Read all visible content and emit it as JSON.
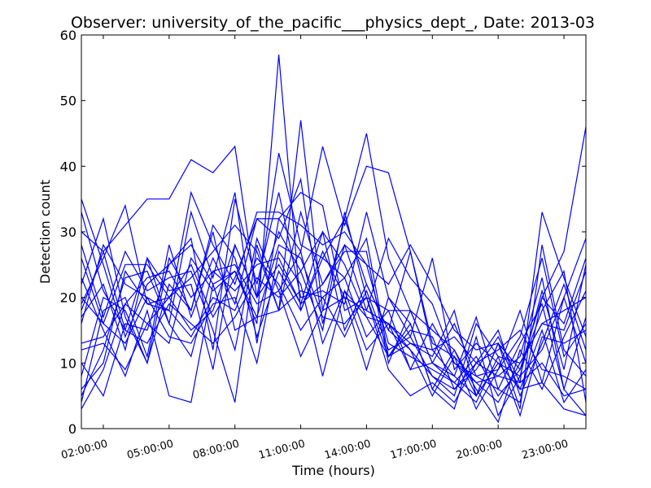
{
  "chart_data": {
    "type": "line",
    "title": "Observer: university_of_the_pacific___physics_dept_, Date: 2013-03",
    "xlabel": "Time (hours)",
    "ylabel": "Detection count",
    "x_unit": "hours",
    "xlim": [
      1,
      24
    ],
    "ylim": [
      0,
      60
    ],
    "yticks": [
      0,
      10,
      20,
      30,
      40,
      50,
      60
    ],
    "xticks": [
      {
        "value": 2,
        "label": "02:00:00"
      },
      {
        "value": 5,
        "label": "05:00:00"
      },
      {
        "value": 8,
        "label": "08:00:00"
      },
      {
        "value": 11,
        "label": "11:00:00"
      },
      {
        "value": 14,
        "label": "14:00:00"
      },
      {
        "value": 17,
        "label": "17:00:00"
      },
      {
        "value": 20,
        "label": "20:00:00"
      },
      {
        "value": 23,
        "label": "23:00:00"
      }
    ],
    "grid": false,
    "legend": "none",
    "color": "#0000ff",
    "x": [
      1,
      2,
      3,
      4,
      5,
      6,
      7,
      8,
      9,
      10,
      11,
      12,
      13,
      14,
      15,
      16,
      17,
      18,
      19,
      20,
      21,
      22,
      23,
      24
    ],
    "series": [
      {
        "values": [
          35,
          25,
          14,
          22,
          25,
          28,
          22,
          24,
          16,
          57,
          18,
          27,
          20,
          18,
          29,
          23,
          19,
          10,
          8,
          6,
          4,
          20,
          16,
          26
        ]
      },
      {
        "values": [
          19,
          26,
          34,
          19,
          20,
          23,
          27,
          31,
          27,
          18,
          47,
          18,
          32,
          45,
          26,
          18,
          15,
          12,
          5,
          13,
          3,
          28,
          12,
          8
        ]
      },
      {
        "values": [
          30,
          27,
          31,
          35,
          35,
          41,
          39,
          43,
          20,
          42,
          28,
          26,
          32,
          22,
          15,
          12,
          8,
          6,
          10,
          8,
          7,
          33,
          23,
          14
        ]
      },
      {
        "values": [
          6,
          10,
          24,
          19,
          18,
          36,
          28,
          22,
          33,
          33,
          31,
          28,
          30,
          25,
          22,
          28,
          22,
          15,
          12,
          13,
          9,
          20,
          27,
          46
        ]
      },
      {
        "values": [
          17,
          22,
          12,
          26,
          16,
          33,
          23,
          36,
          13,
          32,
          27,
          43,
          31,
          40,
          39,
          27,
          13,
          11,
          7,
          4,
          10,
          16,
          18,
          20
        ]
      },
      {
        "values": [
          10,
          5,
          16,
          15,
          25,
          29,
          12,
          35,
          22,
          36,
          20,
          21,
          19,
          33,
          20,
          16,
          6,
          3,
          14,
          2,
          8,
          12,
          20,
          29
        ]
      },
      {
        "values": [
          8,
          20,
          18,
          10,
          26,
          20,
          24,
          21,
          25,
          26,
          19,
          30,
          25,
          17,
          11,
          13,
          11,
          18,
          5,
          13,
          6,
          15,
          4,
          9
        ]
      },
      {
        "values": [
          12,
          13,
          9,
          16,
          20,
          15,
          18,
          28,
          20,
          30,
          24,
          15,
          33,
          20,
          9,
          5,
          7,
          4,
          10,
          12,
          15,
          9,
          8,
          6
        ]
      },
      {
        "values": [
          3,
          9,
          19,
          16,
          13,
          26,
          21,
          24,
          17,
          18,
          33,
          22,
          27,
          27,
          10,
          18,
          10,
          8,
          17,
          6,
          13,
          19,
          6,
          17
        ]
      },
      {
        "values": [
          16,
          28,
          22,
          20,
          14,
          13,
          19,
          20,
          10,
          27,
          22,
          8,
          21,
          12,
          16,
          12,
          5,
          11,
          3,
          9,
          18,
          7,
          20,
          10
        ]
      },
      {
        "values": [
          23,
          15,
          8,
          18,
          5,
          4,
          22,
          12,
          29,
          21,
          11,
          18,
          20,
          9,
          20,
          14,
          8,
          5,
          16,
          11,
          2,
          14,
          13,
          15
        ]
      },
      {
        "values": [
          28,
          17,
          27,
          21,
          23,
          24,
          15,
          4,
          28,
          18,
          21,
          20,
          14,
          21,
          12,
          14,
          26,
          9,
          13,
          10,
          8,
          21,
          9,
          25
        ]
      },
      {
        "values": [
          22,
          32,
          17,
          10,
          22,
          18,
          31,
          26,
          14,
          24,
          18,
          26,
          23,
          29,
          11,
          16,
          6,
          12,
          6,
          1,
          12,
          6,
          14,
          21
        ]
      },
      {
        "values": [
          5,
          12,
          23,
          24,
          16,
          11,
          24,
          25,
          19,
          21,
          27,
          13,
          21,
          17,
          16,
          9,
          16,
          10,
          7,
          8,
          11,
          23,
          6,
          2
        ]
      },
      {
        "values": [
          33,
          21,
          15,
          13,
          19,
          16,
          13,
          17,
          23,
          20,
          24,
          30,
          15,
          22,
          15,
          27,
          12,
          14,
          10,
          15,
          5,
          13,
          22,
          12
        ]
      },
      {
        "values": [
          4,
          18,
          20,
          11,
          28,
          17,
          26,
          19,
          32,
          29,
          38,
          16,
          28,
          25,
          13,
          11,
          9,
          7,
          11,
          5,
          9,
          18,
          24,
          4
        ]
      },
      {
        "values": [
          26,
          16,
          13,
          20,
          18,
          14,
          20,
          18,
          26,
          22,
          15,
          20,
          23,
          14,
          18,
          18,
          10,
          16,
          8,
          9,
          14,
          26,
          11,
          16
        ]
      },
      {
        "values": [
          18,
          27,
          15,
          26,
          21,
          22,
          9,
          28,
          20,
          25,
          19,
          22,
          28,
          18,
          16,
          13,
          12,
          8,
          5,
          10,
          6,
          7,
          3,
          2
        ]
      },
      {
        "values": [
          13,
          14,
          19,
          23,
          24,
          18,
          30,
          15,
          17,
          28,
          26,
          17,
          16,
          20,
          11,
          15,
          14,
          6,
          9,
          14,
          7,
          10,
          5,
          6
        ]
      },
      {
        "values": [
          20,
          16,
          25,
          25,
          20,
          25,
          17,
          23,
          32,
          32,
          36,
          34,
          18,
          20,
          18,
          9,
          10,
          7,
          4,
          11,
          10,
          16,
          15,
          24
        ]
      }
    ]
  }
}
